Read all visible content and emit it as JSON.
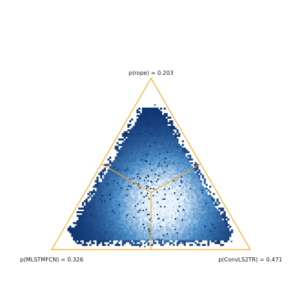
{
  "chart_data": {
    "type": "scatter",
    "subtype": "ternary-hexbin-density",
    "title": "",
    "vertices": [
      {
        "id": "top",
        "label": "p(rope) = 0.203",
        "probability": 0.203
      },
      {
        "id": "left",
        "label": "p(MLSTMFCN) = 0.326",
        "probability": 0.326
      },
      {
        "id": "right",
        "label": "p(ConvLS2TR) = 0.471",
        "probability": 0.471
      }
    ],
    "region_boundary_meeting_point": {
      "top": 0.333,
      "left": 0.333,
      "right": 0.333
    },
    "density_peak": {
      "top": 0.27,
      "left": 0.31,
      "right": 0.42
    },
    "grid": false,
    "legend": "none",
    "colors": {
      "triangle": "#f5a623",
      "density_high": "#e8f3fb",
      "density_mid": "#4a8cc7",
      "density_low": "#0b2f6b",
      "background": "#ffffff"
    }
  }
}
